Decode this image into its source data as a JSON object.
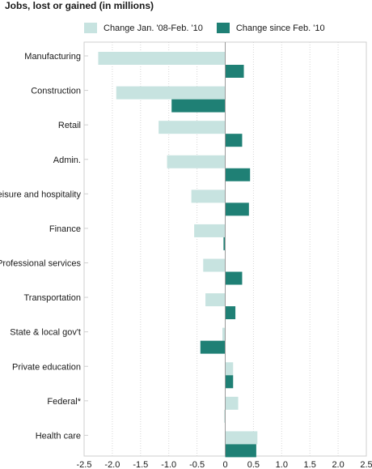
{
  "colors": {
    "period1": "#c7e3e0",
    "period2": "#1f8075",
    "grid": "#d6d6d6",
    "border": "#cfcfcf",
    "zero": "#9a9a9a",
    "text": "#1a1a1a"
  },
  "chart_data": {
    "type": "bar",
    "orientation": "horizontal",
    "title": "Jobs, lost or gained (in millions)",
    "series": [
      {
        "name": "Change Jan. '08-Feb. '10",
        "values": [
          -2.25,
          -1.93,
          -1.18,
          -1.03,
          -0.6,
          -0.55,
          -0.39,
          -0.35,
          -0.05,
          0.14,
          0.23,
          0.57
        ]
      },
      {
        "name": "Change since Feb. '10",
        "values": [
          0.33,
          -0.95,
          0.3,
          0.44,
          0.42,
          -0.03,
          0.3,
          0.18,
          -0.44,
          0.14,
          -0.01,
          0.55
        ]
      }
    ],
    "categories": [
      "Manufacturing",
      "Construction",
      "Retail",
      "Admin.",
      "Leisure and hospitality",
      "Finance",
      "Professional services",
      "Transportation",
      "State & local gov't",
      "Private education",
      "Federal*",
      "Health care"
    ],
    "xlim": [
      -2.5,
      2.5
    ],
    "xticks": [
      -2.5,
      -2.0,
      -1.5,
      -1.0,
      -0.5,
      0,
      0.5,
      1.0,
      1.5,
      2.0,
      2.5
    ],
    "xtick_labels": [
      "-2.5",
      "-2.0",
      "-1.5",
      "-1.0",
      "-0.5",
      "0",
      "0.5",
      "1.0",
      "1.5",
      "2.0",
      "2.5"
    ],
    "grid": true,
    "legend_position": "top"
  }
}
